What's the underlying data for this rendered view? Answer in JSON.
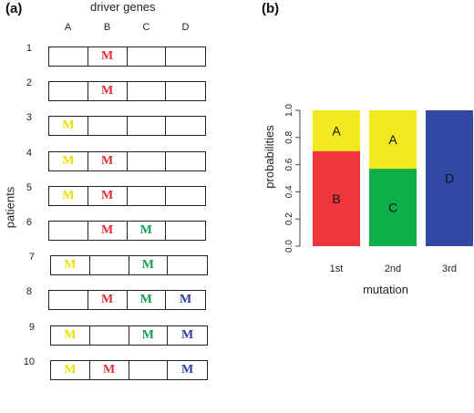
{
  "panel_a": {
    "label": "(a)",
    "title": "driver genes",
    "y_label": "patients",
    "genes": [
      "A",
      "B",
      "C",
      "D"
    ],
    "mark": "M",
    "gene_colors": {
      "A": "#e8e000",
      "B": "#e0303a",
      "C": "#12a050",
      "D": "#2d3e9e"
    },
    "patients": [
      {
        "label": "1",
        "mutated": [
          "B"
        ]
      },
      {
        "label": "2",
        "mutated": [
          "B"
        ]
      },
      {
        "label": "3",
        "mutated": [
          "A"
        ]
      },
      {
        "label": "4",
        "mutated": [
          "A",
          "B"
        ]
      },
      {
        "label": "5",
        "mutated": [
          "A",
          "B"
        ]
      },
      {
        "label": "6",
        "mutated": [
          "B",
          "C"
        ]
      },
      {
        "label": "7",
        "mutated": [
          "A",
          "C"
        ]
      },
      {
        "label": "8",
        "mutated": [
          "B",
          "C",
          "D"
        ]
      },
      {
        "label": "9",
        "mutated": [
          "A",
          "C",
          "D"
        ]
      },
      {
        "label": "10",
        "mutated": [
          "A",
          "B",
          "D"
        ]
      }
    ]
  },
  "panel_b": {
    "label": "(b)"
  },
  "chart_data": {
    "type": "bar",
    "stacked": true,
    "categories": [
      "1st",
      "2nd",
      "3rd"
    ],
    "xlabel": "mutation",
    "ylabel": "probabilities",
    "ylim": [
      0,
      1
    ],
    "yticks": [
      "0.0",
      "0.2",
      "0.4",
      "0.6",
      "0.8",
      "1.0"
    ],
    "stacks": [
      [
        {
          "name": "B",
          "value": 0.7,
          "color": "#f0363c"
        },
        {
          "name": "A",
          "value": 0.3,
          "color": "#f0ea1e"
        }
      ],
      [
        {
          "name": "C",
          "value": 0.57,
          "color": "#0caf48"
        },
        {
          "name": "A",
          "value": 0.43,
          "color": "#f0ea1e"
        }
      ],
      [
        {
          "name": "D",
          "value": 1.0,
          "color": "#3249a4"
        }
      ]
    ]
  }
}
